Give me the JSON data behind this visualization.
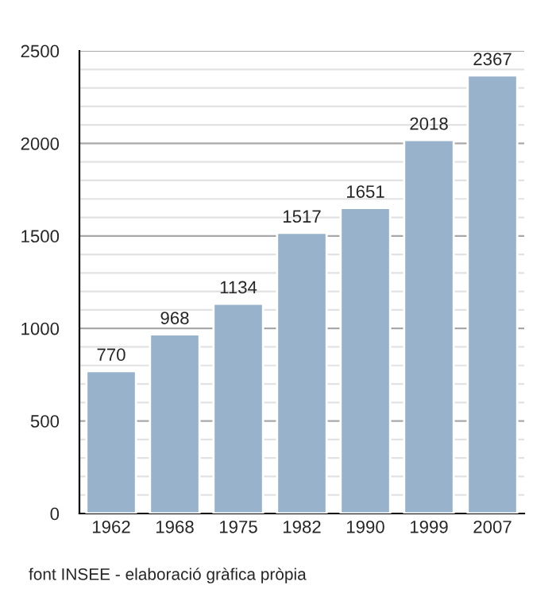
{
  "chart_data": {
    "type": "bar",
    "categories": [
      "1962",
      "1968",
      "1975",
      "1982",
      "1990",
      "1999",
      "2007"
    ],
    "values": [
      770,
      968,
      1134,
      1517,
      1651,
      2018,
      2367
    ],
    "color": "#98b2cc",
    "data_labels": true,
    "ylim": [
      0,
      2500
    ],
    "yticks": [
      0,
      {
        "value": 100,
        "label": null
      },
      {
        "value": 200,
        "label": null
      },
      {
        "value": 300,
        "label": null
      },
      {
        "value": 400,
        "label": null
      },
      500,
      {
        "value": 600,
        "label": null
      },
      {
        "value": 700,
        "label": null
      },
      {
        "value": 800,
        "label": null
      },
      {
        "value": 900,
        "label": null
      },
      1000,
      {
        "value": 1100,
        "label": null
      },
      {
        "value": 1200,
        "label": null
      },
      {
        "value": 1300,
        "label": null
      },
      {
        "value": 1400,
        "label": null
      },
      1500,
      {
        "value": 1600,
        "label": null
      },
      {
        "value": 1700,
        "label": null
      },
      {
        "value": 1800,
        "label": null
      },
      {
        "value": 1900,
        "label": null
      },
      2000,
      {
        "value": 2100,
        "label": null
      },
      {
        "value": 2200,
        "label": null
      },
      {
        "value": 2300,
        "label": null
      },
      {
        "value": 2400,
        "label": null
      },
      2500
    ],
    "grid": "y",
    "annotations": [
      "font INSEE - elaboració gràfica pròpia"
    ]
  }
}
